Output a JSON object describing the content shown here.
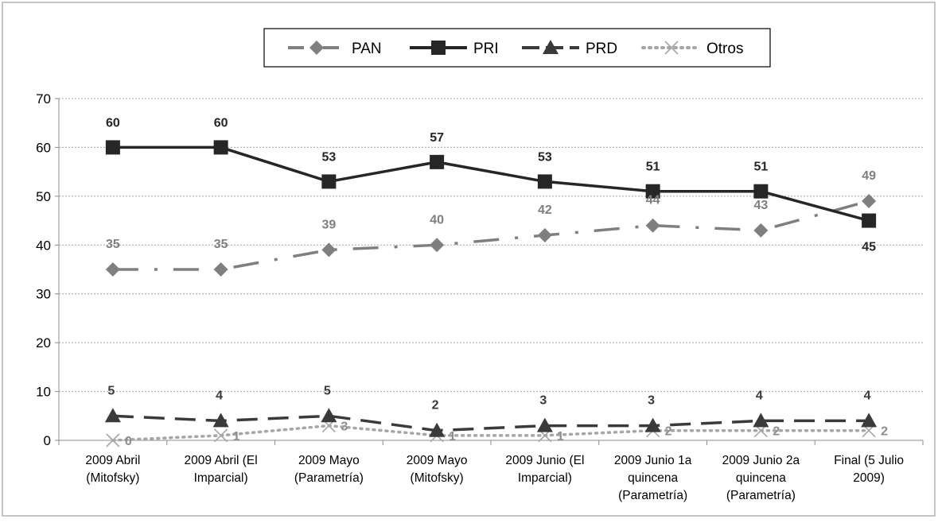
{
  "chart_data": {
    "type": "line",
    "title": "",
    "xlabel": "",
    "ylabel": "",
    "ylim": [
      0,
      70
    ],
    "yticks": [
      0,
      10,
      20,
      30,
      40,
      50,
      60,
      70
    ],
    "grid": "horizontal-dotted",
    "legend_position": "top-center",
    "categories": [
      [
        "2009 Abril",
        "(Mitofsky)"
      ],
      [
        "2009 Abril (El",
        "Imparcial)"
      ],
      [
        "2009 Mayo",
        "(Parametría)"
      ],
      [
        "2009 Mayo",
        "(Mitofsky)"
      ],
      [
        "2009 Junio (El",
        "Imparcial)"
      ],
      [
        "2009 Junio 1a",
        "quincena",
        "(Parametría)"
      ],
      [
        "2009 Junio 2a",
        "quincena",
        "(Parametría)"
      ],
      [
        "Final (5 Julio",
        "2009)"
      ]
    ],
    "series": [
      {
        "name": "PAN",
        "values": [
          35,
          35,
          39,
          40,
          42,
          44,
          43,
          49
        ],
        "color": "#7f7f7f",
        "marker": "diamond",
        "dash": "long-dash-dot",
        "label_color": "#7f7f7f"
      },
      {
        "name": "PRI",
        "values": [
          60,
          60,
          53,
          57,
          53,
          51,
          51,
          45
        ],
        "color": "#262626",
        "marker": "square",
        "dash": "solid",
        "label_color": "#262626"
      },
      {
        "name": "PRD",
        "values": [
          5,
          4,
          5,
          2,
          3,
          3,
          4,
          4
        ],
        "color": "#3a3a3a",
        "marker": "triangle",
        "dash": "long-dash",
        "label_color": "#3a3a3a"
      },
      {
        "name": "Otros",
        "values": [
          0,
          1,
          3,
          1,
          1,
          2,
          2,
          2
        ],
        "color": "#a6a6a6",
        "marker": "x",
        "dash": "dotted",
        "label_color": "#8c8c8c"
      }
    ]
  }
}
